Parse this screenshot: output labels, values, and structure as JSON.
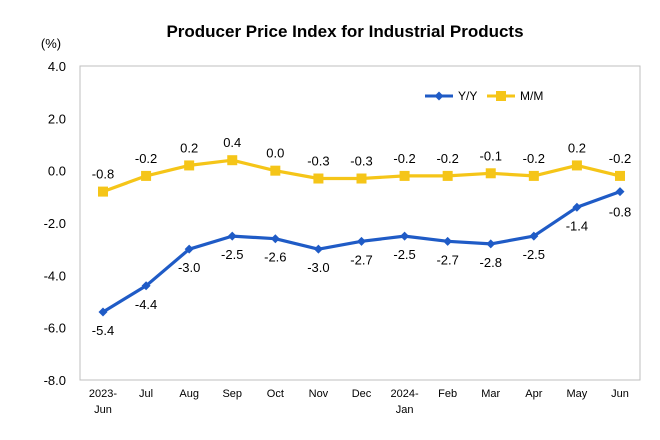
{
  "chart_data": {
    "type": "line",
    "title": "Producer Price Index for Industrial Products",
    "unit_label": "(%)",
    "xlabel": "",
    "ylabel": "",
    "ylim": [
      -8.0,
      4.0
    ],
    "yticks": [
      "4.0",
      "2.0",
      "0.0",
      "-2.0",
      "-4.0",
      "-6.0",
      "-8.0"
    ],
    "ytick_values": [
      4.0,
      2.0,
      0.0,
      -2.0,
      -4.0,
      -6.0,
      -8.0
    ],
    "grid": false,
    "legend_position": "top-right",
    "categories": [
      {
        "top": "2023-",
        "bottom": "Jun"
      },
      {
        "top": "Jul",
        "bottom": ""
      },
      {
        "top": "Aug",
        "bottom": ""
      },
      {
        "top": "Sep",
        "bottom": ""
      },
      {
        "top": "Oct",
        "bottom": ""
      },
      {
        "top": "Nov",
        "bottom": ""
      },
      {
        "top": "Dec",
        "bottom": ""
      },
      {
        "top": "2024-",
        "bottom": "Jan"
      },
      {
        "top": "Feb",
        "bottom": ""
      },
      {
        "top": "Mar",
        "bottom": ""
      },
      {
        "top": "Apr",
        "bottom": ""
      },
      {
        "top": "May",
        "bottom": ""
      },
      {
        "top": "Jun",
        "bottom": ""
      }
    ],
    "series": [
      {
        "name": "Y/Y",
        "color": "#1F5BC6",
        "marker": "diamond",
        "values": [
          -5.4,
          -4.4,
          -3.0,
          -2.5,
          -2.6,
          -3.0,
          -2.7,
          -2.5,
          -2.7,
          -2.8,
          -2.5,
          -1.4,
          -0.8
        ],
        "labels": [
          "-5.4",
          "-4.4",
          "-3.0",
          "-2.5",
          "-2.6",
          "-3.0",
          "-2.7",
          "-2.5",
          "-2.7",
          "-2.8",
          "-2.5",
          "-1.4",
          "-0.8"
        ]
      },
      {
        "name": "M/M",
        "color": "#F5C518",
        "marker": "square",
        "values": [
          -0.8,
          -0.2,
          0.2,
          0.4,
          0.0,
          -0.3,
          -0.3,
          -0.2,
          -0.2,
          -0.1,
          -0.2,
          0.2,
          -0.2
        ],
        "labels": [
          "-0.8",
          "-0.2",
          "0.2",
          "0.4",
          "0.0",
          "-0.3",
          "-0.3",
          "-0.2",
          "-0.2",
          "-0.1",
          "-0.2",
          "0.2",
          "-0.2"
        ]
      }
    ]
  }
}
